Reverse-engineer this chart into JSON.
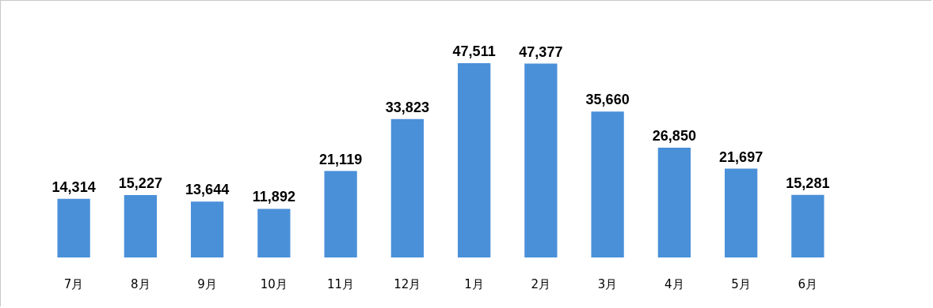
{
  "chart_data": {
    "type": "bar",
    "categories": [
      "7月",
      "8月",
      "9月",
      "10月",
      "11月",
      "12月",
      "1月",
      "2月",
      "3月",
      "4月",
      "5月",
      "6月"
    ],
    "values": [
      14314,
      15227,
      13644,
      11892,
      21119,
      33823,
      47511,
      47377,
      35660,
      26850,
      21697,
      15281
    ],
    "value_labels": [
      "14,314",
      "15,227",
      "13,644",
      "11,892",
      "21,119",
      "33,823",
      "47,511",
      "47,377",
      "35,660",
      "26,850",
      "21,697",
      "15,281"
    ],
    "color": "#4a90d9"
  }
}
